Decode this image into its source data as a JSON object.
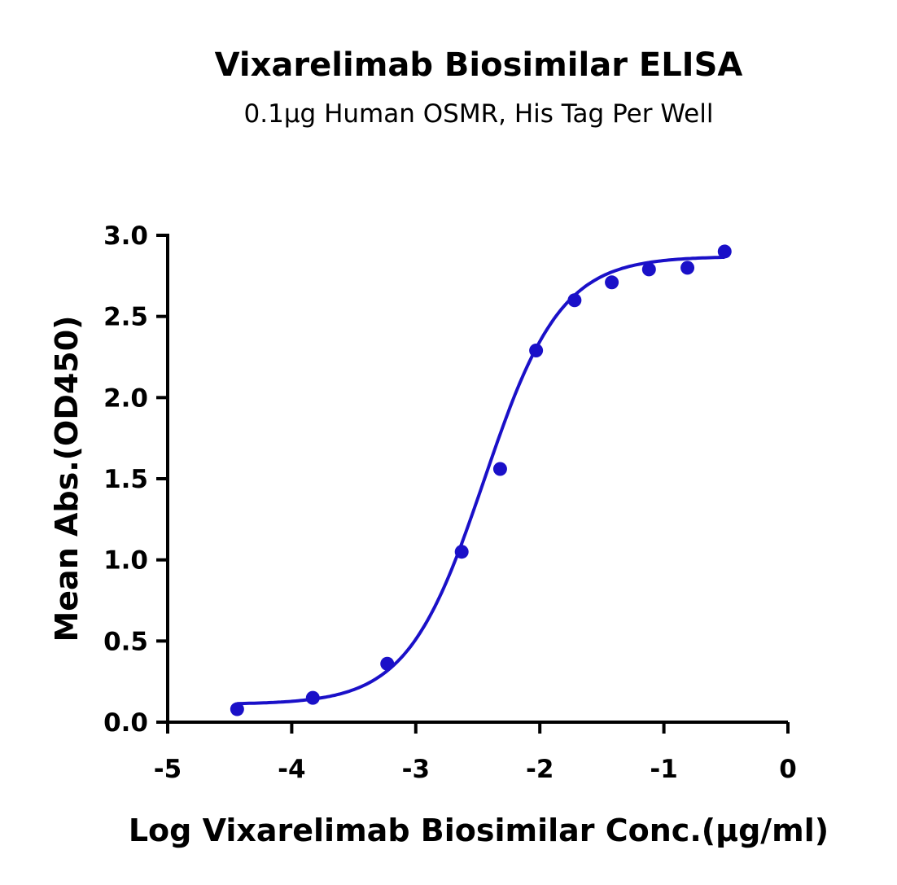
{
  "chart_data": {
    "type": "scatter",
    "title": "Vixarelimab Biosimilar ELISA",
    "subtitle": "0.1µg Human OSMR, His Tag Per Well",
    "xlabel": "Log Vixarelimab Biosimilar Conc.(µg/ml)",
    "ylabel": "Mean Abs.(OD450)",
    "xlim": [
      -5,
      0
    ],
    "ylim": [
      0,
      3.0
    ],
    "xticks": [
      "-5",
      "-4",
      "-3",
      "-2",
      "-1",
      "0"
    ],
    "xtick_values": [
      -5,
      -4,
      -3,
      -2,
      -1,
      0
    ],
    "yticks": [
      "0.0",
      "0.5",
      "1.0",
      "1.5",
      "2.0",
      "2.5",
      "3.0"
    ],
    "ytick_values": [
      0,
      0.5,
      1.0,
      1.5,
      2.0,
      2.5,
      3.0
    ],
    "grid": false,
    "color": "#1a10c8",
    "points": [
      {
        "x": -4.44,
        "y": 0.08
      },
      {
        "x": -3.83,
        "y": 0.15
      },
      {
        "x": -3.23,
        "y": 0.36
      },
      {
        "x": -2.63,
        "y": 1.05
      },
      {
        "x": -2.32,
        "y": 1.56
      },
      {
        "x": -2.03,
        "y": 2.29
      },
      {
        "x": -1.72,
        "y": 2.6
      },
      {
        "x": -1.42,
        "y": 2.71
      },
      {
        "x": -1.12,
        "y": 2.79
      },
      {
        "x": -0.81,
        "y": 2.8
      },
      {
        "x": -0.51,
        "y": 2.9
      }
    ],
    "fit": {
      "type": "4PL",
      "bottom": 0.11,
      "top": 2.87,
      "logEC50": -2.45,
      "hill": 1.4
    }
  }
}
